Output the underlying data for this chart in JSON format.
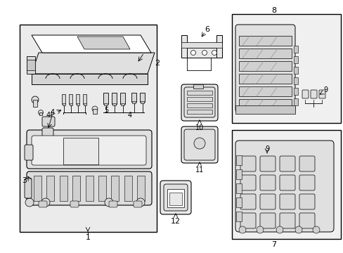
{
  "bg": "#ffffff",
  "lc": "#000000",
  "gray_light": "#e8e8e8",
  "gray_med": "#d0d0d0",
  "gray_dark": "#b8b8b8",
  "fig_w": 4.89,
  "fig_h": 3.6,
  "dpi": 100
}
